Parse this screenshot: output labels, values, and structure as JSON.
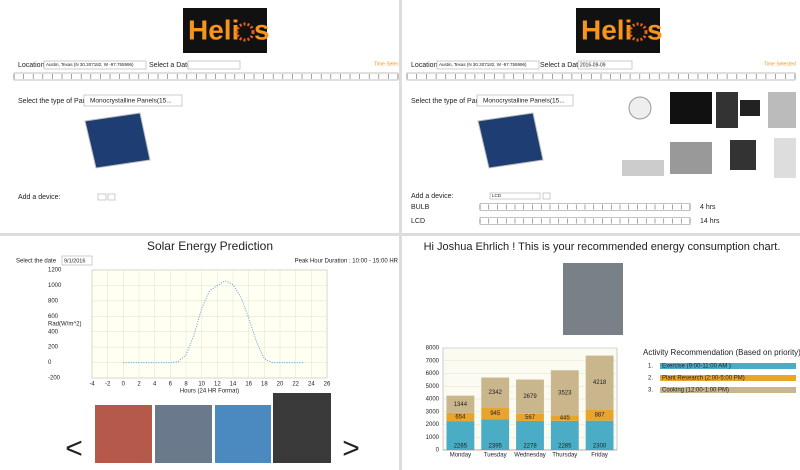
{
  "logo": {
    "left": "Heli",
    "right": "s"
  },
  "setup": {
    "location_label": "Location:",
    "location": "Austin, Texas (N 30.307182, W -97.755996)",
    "date_label": "Select a Date:",
    "time_label": "Time Selec",
    "panel_label": "Select the type of Panel",
    "panel_type": "Monocrystalline Panels(15...",
    "device_label": "Add a device:"
  },
  "setup_selected": {
    "location_label": "Location:",
    "location": "Austin, Texas (N 30.307182, W -97.755996)",
    "date_label": "Select a Date:",
    "date": "2016-09-09",
    "time_label": "Time Selected",
    "panel_label": "Select the type of Panel",
    "panel_type": "Monocrystalline Panels(15...",
    "device_label": "Add a device:",
    "device": "LCD",
    "devices": [
      {
        "name": "BULB",
        "hours": "4 hrs"
      },
      {
        "name": "LCD",
        "hours": "14 hrs"
      }
    ]
  },
  "prediction": {
    "title": "Solar Energy Prediction",
    "date_label": "Select the date",
    "date": "9/1/2016",
    "peak": "Peak Hour Duration : 10:00 - 15:00 HR",
    "chart": {
      "type": "line",
      "color": "#5b9bd5",
      "x": [
        0,
        1,
        2,
        3,
        4,
        5,
        6,
        7,
        8,
        9,
        10,
        11,
        12,
        13,
        14,
        15,
        16,
        17,
        18,
        19,
        20,
        21,
        22,
        23
      ],
      "values": [
        0,
        0,
        0,
        0,
        0,
        0,
        0,
        10,
        100,
        350,
        700,
        930,
        1000,
        1060,
        1010,
        850,
        580,
        270,
        50,
        0,
        0,
        0,
        0,
        0
      ],
      "xlim": [
        -4,
        26
      ],
      "xticks": [
        -4,
        -2,
        0,
        2,
        4,
        6,
        8,
        10,
        12,
        14,
        16,
        18,
        20,
        22,
        24,
        26
      ],
      "ylim": [
        -200,
        1200
      ],
      "yticks": [
        -200,
        0,
        200,
        400,
        600,
        800,
        1000,
        1200
      ],
      "x_label": "Hours (24 HR Format)",
      "y_label": "Rad(W/m^2)",
      "grid": true
    }
  },
  "gallery": {
    "prev": "<",
    "next": ">"
  },
  "recommendation": {
    "greeting": "Hi Joshua Ehrlich ! This is your recommended energy consumption chart.",
    "chart": {
      "type": "stacked_bar",
      "categories": [
        "Monday",
        "Tuesday",
        "Wednesday",
        "Thursday",
        "Friday"
      ],
      "series": [
        {
          "color": "#4bacc6",
          "values": [
            2265,
            2395,
            2278,
            2285,
            2300
          ]
        },
        {
          "color": "#e9a42c",
          "values": [
            654,
            945,
            567,
            445,
            887
          ]
        },
        {
          "color": "#c9b68c",
          "values": [
            1344,
            2342,
            2679,
            3523,
            4218
          ]
        }
      ],
      "ylim": [
        0,
        8000
      ],
      "yticks": [
        0,
        1000,
        2000,
        3000,
        4000,
        5000,
        6000,
        7000,
        8000
      ],
      "grid": true
    },
    "activity_title": "Activity Recommendation (Based on priority)",
    "activities": [
      {
        "number": "1.",
        "text": "Exercise (9:00-11:00 AM )",
        "color": "#4bacc6"
      },
      {
        "number": "2.",
        "text": "Plant Research (2:00-5:00 PM)",
        "color": "#e9a42c"
      },
      {
        "number": "3.",
        "text": "Cooking (12:00-1:00 PM)",
        "color": "#c9b68c"
      }
    ]
  }
}
